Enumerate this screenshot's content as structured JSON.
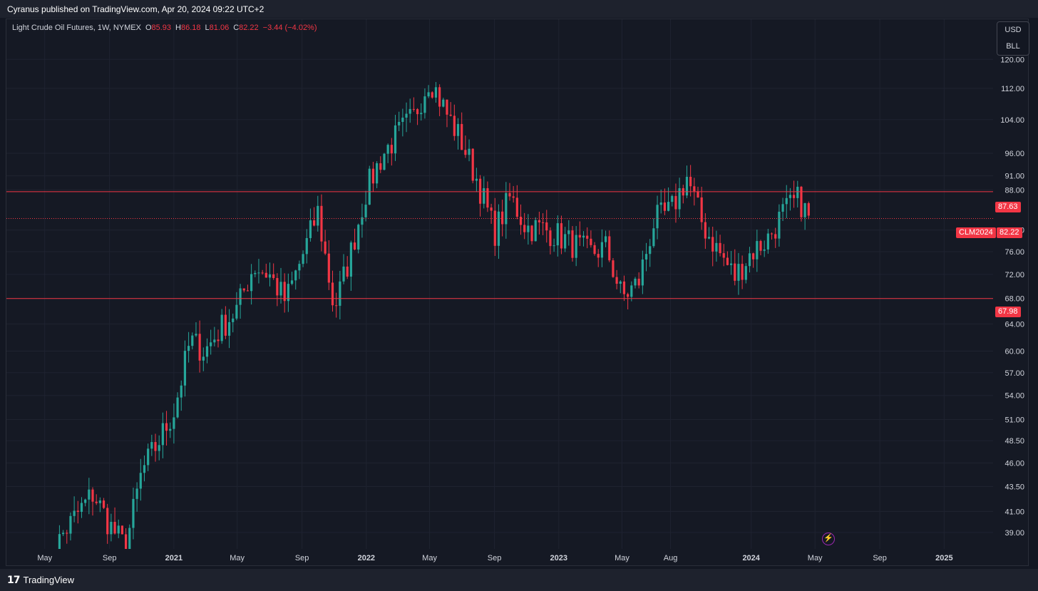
{
  "header": {
    "published": "Cyranus published on TradingView.com, Apr 20, 2024 09:22 UTC+2"
  },
  "legend": {
    "symbol": "Light Crude Oil Futures, 1W, NYMEX",
    "o_label": "O",
    "o_value": "85.93",
    "h_label": "H",
    "h_value": "86.18",
    "l_label": "L",
    "l_value": "81.06",
    "c_label": "C",
    "c_value": "82.22",
    "change": "−3.44 (−4.02%)"
  },
  "units": {
    "currency": "USD",
    "unit": "BLL"
  },
  "tags": {
    "resistance": "87.63",
    "support": "67.98",
    "ticker": "CLM2024",
    "last": "82.22"
  },
  "footer": {
    "brand": "TradingView",
    "logo_glyph": "17"
  },
  "icons": {
    "flash": "lightning-icon"
  },
  "colors": {
    "up": "#26a69a",
    "down": "#f23645",
    "background": "#131722",
    "grid": "#1f2330"
  },
  "chart_data": {
    "type": "candlestick",
    "scale": "log",
    "y_ticks": [
      "120.00",
      "112.00",
      "104.00",
      "96.00",
      "91.00",
      "88.00",
      "80.00",
      "76.00",
      "72.00",
      "68.00",
      "64.00",
      "60.00",
      "57.00",
      "54.00",
      "51.00",
      "48.50",
      "46.00",
      "43.50",
      "41.00",
      "39.00"
    ],
    "x_ticks": [
      "May",
      "Sep",
      "2021",
      "May",
      "Sep",
      "2022",
      "May",
      "Sep",
      "2023",
      "May",
      "Aug",
      "2024",
      "May",
      "Sep",
      "2025"
    ],
    "x_tick_years": [
      "2021",
      "2022",
      "2023",
      "2024",
      "2025"
    ],
    "horizontal_levels": [
      87.63,
      67.98
    ],
    "last_price": 82.22,
    "ylim": [
      37.5,
      132
    ],
    "weekly_close_path": [
      [
        "2020-05-01",
        35.0
      ],
      [
        "2020-06-01",
        38.6
      ],
      [
        "2020-07-01",
        40.7
      ],
      [
        "2020-08-01",
        42.8
      ],
      [
        "2020-09-01",
        39.7
      ],
      [
        "2020-10-01",
        37.6
      ],
      [
        "2020-11-01",
        45.0
      ],
      [
        "2020-12-01",
        48.2
      ],
      [
        "2021-01-01",
        52.0
      ],
      [
        "2021-02-01",
        61.5
      ],
      [
        "2021-03-01",
        60.0
      ],
      [
        "2021-04-01",
        63.5
      ],
      [
        "2021-05-01",
        66.3
      ],
      [
        "2021-06-01",
        73.5
      ],
      [
        "2021-07-01",
        72.0
      ],
      [
        "2021-08-01",
        67.5
      ],
      [
        "2021-09-01",
        75.0
      ],
      [
        "2021-10-01",
        83.5
      ],
      [
        "2021-11-01",
        66.2
      ],
      [
        "2021-12-01",
        75.2
      ],
      [
        "2022-01-01",
        88.0
      ],
      [
        "2022-02-01",
        95.7
      ],
      [
        "2022-03-01",
        100.3
      ],
      [
        "2022-04-01",
        104.7
      ],
      [
        "2022-05-01",
        115.1
      ],
      [
        "2022-06-01",
        105.8
      ],
      [
        "2022-07-01",
        98.6
      ],
      [
        "2022-08-01",
        89.6
      ],
      [
        "2022-09-01",
        79.5
      ],
      [
        "2022-10-01",
        86.5
      ],
      [
        "2022-11-01",
        80.5
      ],
      [
        "2022-12-01",
        80.3
      ],
      [
        "2023-01-01",
        78.9
      ],
      [
        "2023-02-01",
        77.1
      ],
      [
        "2023-03-01",
        75.7
      ],
      [
        "2023-04-01",
        76.8
      ],
      [
        "2023-05-01",
        68.1
      ],
      [
        "2023-06-01",
        70.6
      ],
      [
        "2023-07-01",
        81.8
      ],
      [
        "2023-08-01",
        83.6
      ],
      [
        "2023-09-01",
        90.8
      ],
      [
        "2023-10-01",
        81.0
      ],
      [
        "2023-11-01",
        75.9
      ],
      [
        "2023-12-01",
        71.6
      ],
      [
        "2024-01-01",
        75.9
      ],
      [
        "2024-02-01",
        78.3
      ],
      [
        "2024-03-01",
        83.2
      ],
      [
        "2024-04-01",
        86.2
      ],
      [
        "2024-04-19",
        82.2
      ]
    ]
  }
}
